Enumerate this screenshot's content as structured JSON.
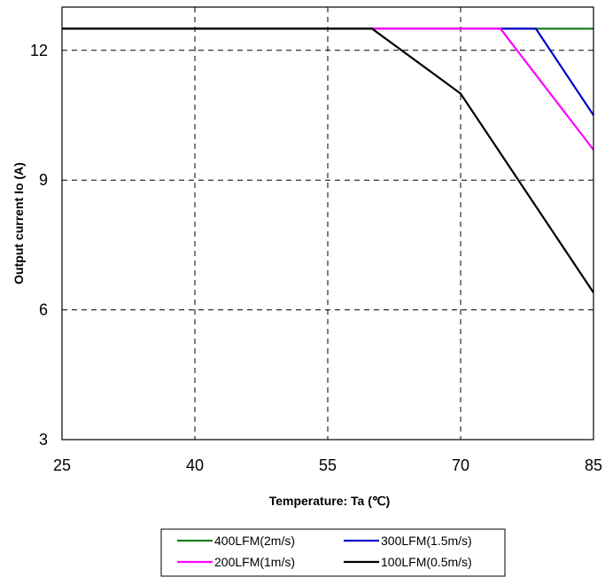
{
  "chart_data": {
    "type": "line",
    "title": "",
    "xlabel": "Temperature: Ta (℃)",
    "ylabel": "Output current  Io (A)",
    "xlim": [
      25,
      85
    ],
    "ylim": [
      3,
      13
    ],
    "xticks": [
      25,
      40,
      55,
      70,
      85
    ],
    "yticks": [
      3,
      6,
      9,
      12
    ],
    "xtick_labels": [
      "25",
      "40",
      "55",
      "70",
      "85"
    ],
    "ytick_labels": [
      "3",
      "6",
      "9",
      "12"
    ],
    "grid": "dashed",
    "legend_position": "bottom",
    "series": [
      {
        "name": "400LFM(2m/s)",
        "color": "#1a7f1a",
        "x": [
          25,
          85
        ],
        "y": [
          12.5,
          12.5
        ]
      },
      {
        "name": "300LFM(1.5m/s)",
        "color": "#0000cc",
        "x": [
          25,
          78.5,
          85
        ],
        "y": [
          12.5,
          12.5,
          10.5
        ]
      },
      {
        "name": "200LFM(1m/s)",
        "color": "#ff00ff",
        "x": [
          25,
          74.5,
          85
        ],
        "y": [
          12.5,
          12.5,
          9.7
        ]
      },
      {
        "name": "100LFM(0.5m/s)",
        "color": "#000000",
        "x": [
          25,
          60,
          70,
          85
        ],
        "y": [
          12.5,
          12.5,
          11.0,
          6.4
        ]
      }
    ]
  }
}
